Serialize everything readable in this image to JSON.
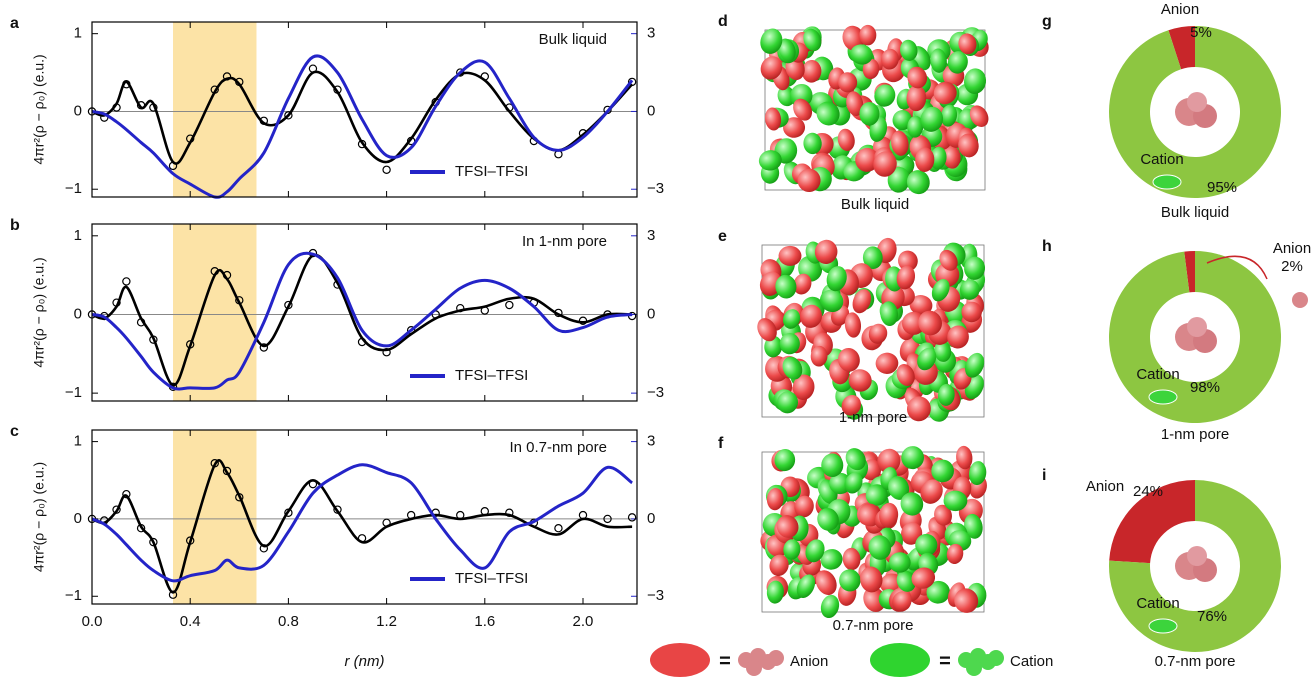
{
  "chart_data": [
    {
      "type": "line",
      "label": "a",
      "annotation": "Bulk liquid",
      "ylabel": "4πr²(ρ − ρ₀) (e.u.)",
      "x": [
        0,
        0.05,
        0.1,
        0.14,
        0.2,
        0.25,
        0.33,
        0.4,
        0.5,
        0.55,
        0.6,
        0.7,
        0.8,
        0.9,
        1.0,
        1.1,
        1.2,
        1.3,
        1.4,
        1.5,
        1.6,
        1.7,
        1.8,
        1.9,
        2.0,
        2.1,
        2.2
      ],
      "xlim": [
        0,
        2.22
      ],
      "ylim": [
        -1.1,
        1.15
      ],
      "yticks": [
        {
          "value": -1,
          "label": "−1"
        },
        0,
        1
      ],
      "y2lim": [
        -3.3,
        3.45
      ],
      "y2ticks": [
        {
          "value": -3,
          "label": "−3"
        },
        0,
        3
      ],
      "highlight": [
        0.33,
        0.67
      ],
      "highlight_color": "#fce3a6",
      "zero_line": true,
      "series": [
        {
          "color": "#000000",
          "style": "line",
          "values": [
            0,
            -0.05,
            0.1,
            0.38,
            0.05,
            0.1,
            -0.65,
            -0.4,
            0.25,
            0.42,
            0.35,
            -0.15,
            -0.05,
            0.5,
            0.25,
            -0.4,
            -0.65,
            -0.35,
            0.15,
            0.48,
            0.4,
            0.0,
            -0.35,
            -0.5,
            -0.3,
            0.0,
            0.35
          ]
        },
        {
          "color": "#000000",
          "style": "markers",
          "values": [
            0,
            -0.08,
            0.05,
            0.35,
            0.08,
            0.05,
            -0.7,
            -0.35,
            0.28,
            0.45,
            0.38,
            -0.12,
            -0.05,
            0.55,
            0.28,
            -0.42,
            -0.75,
            -0.38,
            0.12,
            0.5,
            0.45,
            0.05,
            -0.38,
            -0.55,
            -0.28,
            0.02,
            0.38
          ]
        },
        {
          "name": "TFSI–TFSI",
          "color": "#2424c8",
          "style": "line",
          "axis": "y2",
          "values": [
            0,
            -0.1,
            -0.4,
            -0.7,
            -1.2,
            -1.6,
            -2.4,
            -2.8,
            -3.3,
            -3.1,
            -2.6,
            -1.6,
            0.5,
            2.1,
            1.5,
            -0.3,
            -1.7,
            -1.4,
            0.2,
            1.5,
            1.9,
            0.5,
            -1.0,
            -1.5,
            -1.0,
            0.0,
            1.2
          ]
        }
      ]
    },
    {
      "type": "line",
      "label": "b",
      "annotation": "In 1-nm pore",
      "ylabel": "4πr²(ρ − ρ₀) (e.u.)",
      "x": [
        0,
        0.05,
        0.1,
        0.14,
        0.2,
        0.25,
        0.33,
        0.4,
        0.5,
        0.55,
        0.6,
        0.7,
        0.8,
        0.9,
        1.0,
        1.1,
        1.2,
        1.3,
        1.4,
        1.5,
        1.6,
        1.7,
        1.8,
        1.9,
        2.0,
        2.1,
        2.2
      ],
      "xlim": [
        0,
        2.22
      ],
      "ylim": [
        -1.1,
        1.15
      ],
      "yticks": [
        {
          "value": -1,
          "label": "−1"
        },
        0,
        1
      ],
      "y2lim": [
        -3.3,
        3.45
      ],
      "y2ticks": [
        {
          "value": -3,
          "label": "−3"
        },
        0,
        3
      ],
      "highlight": [
        0.33,
        0.67
      ],
      "highlight_color": "#fce3a6",
      "zero_line": true,
      "series": [
        {
          "color": "#000000",
          "style": "line",
          "values": [
            0,
            -0.05,
            0.1,
            0.35,
            -0.05,
            -0.3,
            -0.9,
            -0.4,
            0.5,
            0.45,
            0.15,
            -0.4,
            0.1,
            0.75,
            0.4,
            -0.3,
            -0.45,
            -0.25,
            -0.05,
            0.05,
            0.1,
            0.2,
            0.2,
            0.0,
            -0.1,
            0.0,
            0.0
          ]
        },
        {
          "color": "#000000",
          "style": "markers",
          "values": [
            0,
            -0.02,
            0.15,
            0.42,
            -0.1,
            -0.32,
            -0.92,
            -0.38,
            0.55,
            0.5,
            0.18,
            -0.42,
            0.12,
            0.78,
            0.38,
            -0.35,
            -0.48,
            -0.2,
            0.0,
            0.08,
            0.05,
            0.12,
            0.15,
            0.02,
            -0.08,
            0.0,
            -0.02
          ]
        },
        {
          "name": "TFSI–TFSI",
          "color": "#2424c8",
          "style": "line",
          "axis": "y2",
          "values": [
            0,
            -0.1,
            -0.5,
            -0.9,
            -1.6,
            -2.2,
            -2.8,
            -2.8,
            -2.8,
            -2.5,
            -2.2,
            -0.3,
            1.9,
            2.3,
            1.4,
            -0.6,
            -1.2,
            -0.6,
            0.2,
            1.0,
            1.3,
            1.0,
            0.3,
            -0.6,
            -0.5,
            -0.1,
            0.0
          ]
        }
      ]
    },
    {
      "type": "line",
      "label": "c",
      "annotation": "In 0.7-nm pore",
      "ylabel": "4πr²(ρ − ρ₀) (e.u.)",
      "xlabel": "r (nm)",
      "x": [
        0,
        0.05,
        0.1,
        0.14,
        0.2,
        0.25,
        0.33,
        0.4,
        0.5,
        0.55,
        0.6,
        0.7,
        0.8,
        0.9,
        1.0,
        1.1,
        1.2,
        1.3,
        1.4,
        1.5,
        1.6,
        1.7,
        1.8,
        1.9,
        2.0,
        2.1,
        2.2
      ],
      "xlim": [
        0,
        2.22
      ],
      "xticks": [
        {
          "value": 0,
          "label": "0.0"
        },
        0.4,
        0.8,
        1.2,
        1.6,
        {
          "value": 2,
          "label": "2.0"
        }
      ],
      "ylim": [
        -1.1,
        1.15
      ],
      "yticks": [
        {
          "value": -1,
          "label": "−1"
        },
        0,
        1
      ],
      "y2lim": [
        -3.3,
        3.45
      ],
      "y2ticks": [
        {
          "value": -3,
          "label": "−3"
        },
        0,
        3
      ],
      "highlight": [
        0.33,
        0.67
      ],
      "highlight_color": "#fce3a6",
      "zero_line": true,
      "series": [
        {
          "color": "#000000",
          "style": "line",
          "values": [
            0,
            -0.05,
            0.1,
            0.3,
            -0.1,
            -0.3,
            -0.95,
            -0.3,
            0.7,
            0.6,
            0.3,
            -0.35,
            0.1,
            0.5,
            0.1,
            -0.3,
            -0.1,
            0.0,
            0.05,
            0.0,
            0.05,
            0.05,
            -0.1,
            -0.2,
            0.0,
            -0.1,
            -0.1
          ]
        },
        {
          "color": "#000000",
          "style": "markers",
          "values": [
            0,
            -0.02,
            0.12,
            0.32,
            -0.12,
            -0.3,
            -0.98,
            -0.28,
            0.72,
            0.62,
            0.28,
            -0.38,
            0.08,
            0.45,
            0.12,
            -0.25,
            -0.05,
            0.05,
            0.08,
            0.05,
            0.1,
            0.08,
            -0.05,
            -0.12,
            0.05,
            0.0,
            0.02
          ]
        },
        {
          "name": "TFSI–TFSI",
          "color": "#2424c8",
          "style": "line",
          "axis": "y2",
          "values": [
            0,
            -0.2,
            -0.6,
            -1.0,
            -1.6,
            -2.0,
            -2.4,
            -2.2,
            -2.0,
            -1.6,
            -1.9,
            -1.8,
            -0.5,
            1.0,
            1.7,
            2.1,
            1.8,
            1.4,
            0.0,
            -1.2,
            -1.9,
            -0.5,
            -0.1,
            0.5,
            1.0,
            2.0,
            1.4
          ]
        }
      ]
    },
    {
      "type": "pie",
      "label": "g",
      "categories": [
        "Anion",
        "Cation"
      ],
      "values": [
        5,
        95
      ],
      "value_labels": [
        "5%",
        "95%"
      ],
      "colors": [
        "#c8262a",
        "#8dc641"
      ],
      "caption": "Bulk liquid"
    },
    {
      "type": "pie",
      "label": "h",
      "categories": [
        "Anion",
        "Cation"
      ],
      "values": [
        2,
        98
      ],
      "value_labels": [
        "2%",
        "98%"
      ],
      "colors": [
        "#c8262a",
        "#8dc641"
      ],
      "caption": "1-nm pore"
    },
    {
      "type": "pie",
      "label": "i",
      "categories": [
        "Anion",
        "Cation"
      ],
      "values": [
        24,
        76
      ],
      "value_labels": [
        "24%",
        "76%"
      ],
      "colors": [
        "#c8262a",
        "#8dc641"
      ],
      "caption": "0.7-nm pore"
    }
  ],
  "snapshots": [
    {
      "label": "d",
      "caption": "Bulk liquid"
    },
    {
      "label": "e",
      "caption": "1-nm pore"
    },
    {
      "label": "f",
      "caption": "0.7-nm pore"
    }
  ],
  "legend": {
    "separator": "=",
    "items": [
      {
        "name": "Anion",
        "color": "#e84545"
      },
      {
        "name": "Cation",
        "color": "#2fd42f"
      }
    ]
  }
}
